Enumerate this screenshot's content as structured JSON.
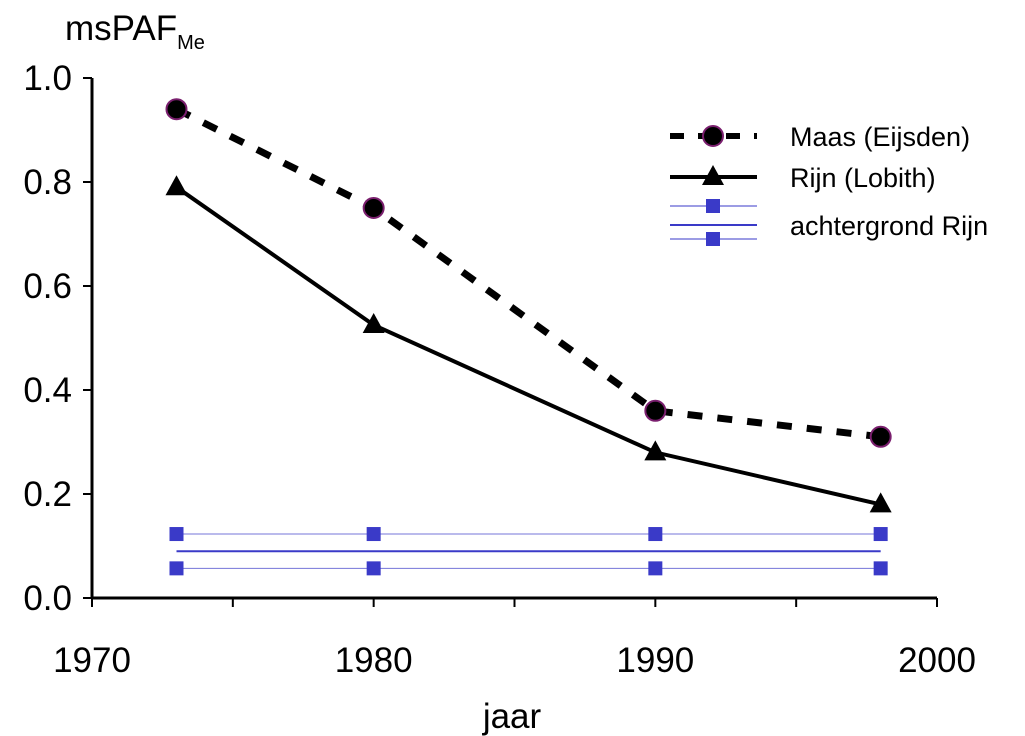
{
  "chart_data": {
    "type": "line",
    "title": "",
    "ylabel_main": "msPAF",
    "ylabel_sub": "Me",
    "xlabel": "jaar",
    "xlim": [
      1970,
      2000
    ],
    "ylim": [
      0,
      1
    ],
    "xticks": [
      1970,
      1975,
      1980,
      1985,
      1990,
      1995,
      2000
    ],
    "xtick_labels": [
      "1970",
      "1980",
      "1990",
      "2000"
    ],
    "xtick_label_values": [
      1970,
      1980,
      1990,
      2000
    ],
    "yticks": [
      0,
      0.2,
      0.4,
      0.6,
      0.8,
      1.0
    ],
    "ytick_labels": [
      "0.0",
      "0.2",
      "0.4",
      "0.6",
      "0.8",
      "1.0"
    ],
    "grid": false,
    "legend_position": "top-right",
    "series": [
      {
        "name": "Maas (Eijsden)",
        "style": "dashed",
        "marker": "circle",
        "color": "#000000",
        "marker_edge": "#7a1f6e",
        "x": [
          1973,
          1980,
          1990,
          1998
        ],
        "y": [
          0.94,
          0.75,
          0.36,
          0.31
        ]
      },
      {
        "name": "Rijn (Lobith)",
        "style": "solid",
        "marker": "triangle",
        "color": "#000000",
        "x": [
          1973,
          1980,
          1990,
          1998
        ],
        "y": [
          0.79,
          0.525,
          0.28,
          0.18
        ]
      },
      {
        "name": "achtergrond Rijn",
        "style": "band",
        "marker": "square",
        "color": "#3a3ac8",
        "x": [
          1973,
          1980,
          1990,
          1998
        ],
        "y": [
          0.09,
          0.09,
          0.09,
          0.09
        ],
        "upper": [
          0.123,
          0.123,
          0.123,
          0.123
        ],
        "lower": [
          0.057,
          0.057,
          0.057,
          0.057
        ]
      }
    ]
  }
}
